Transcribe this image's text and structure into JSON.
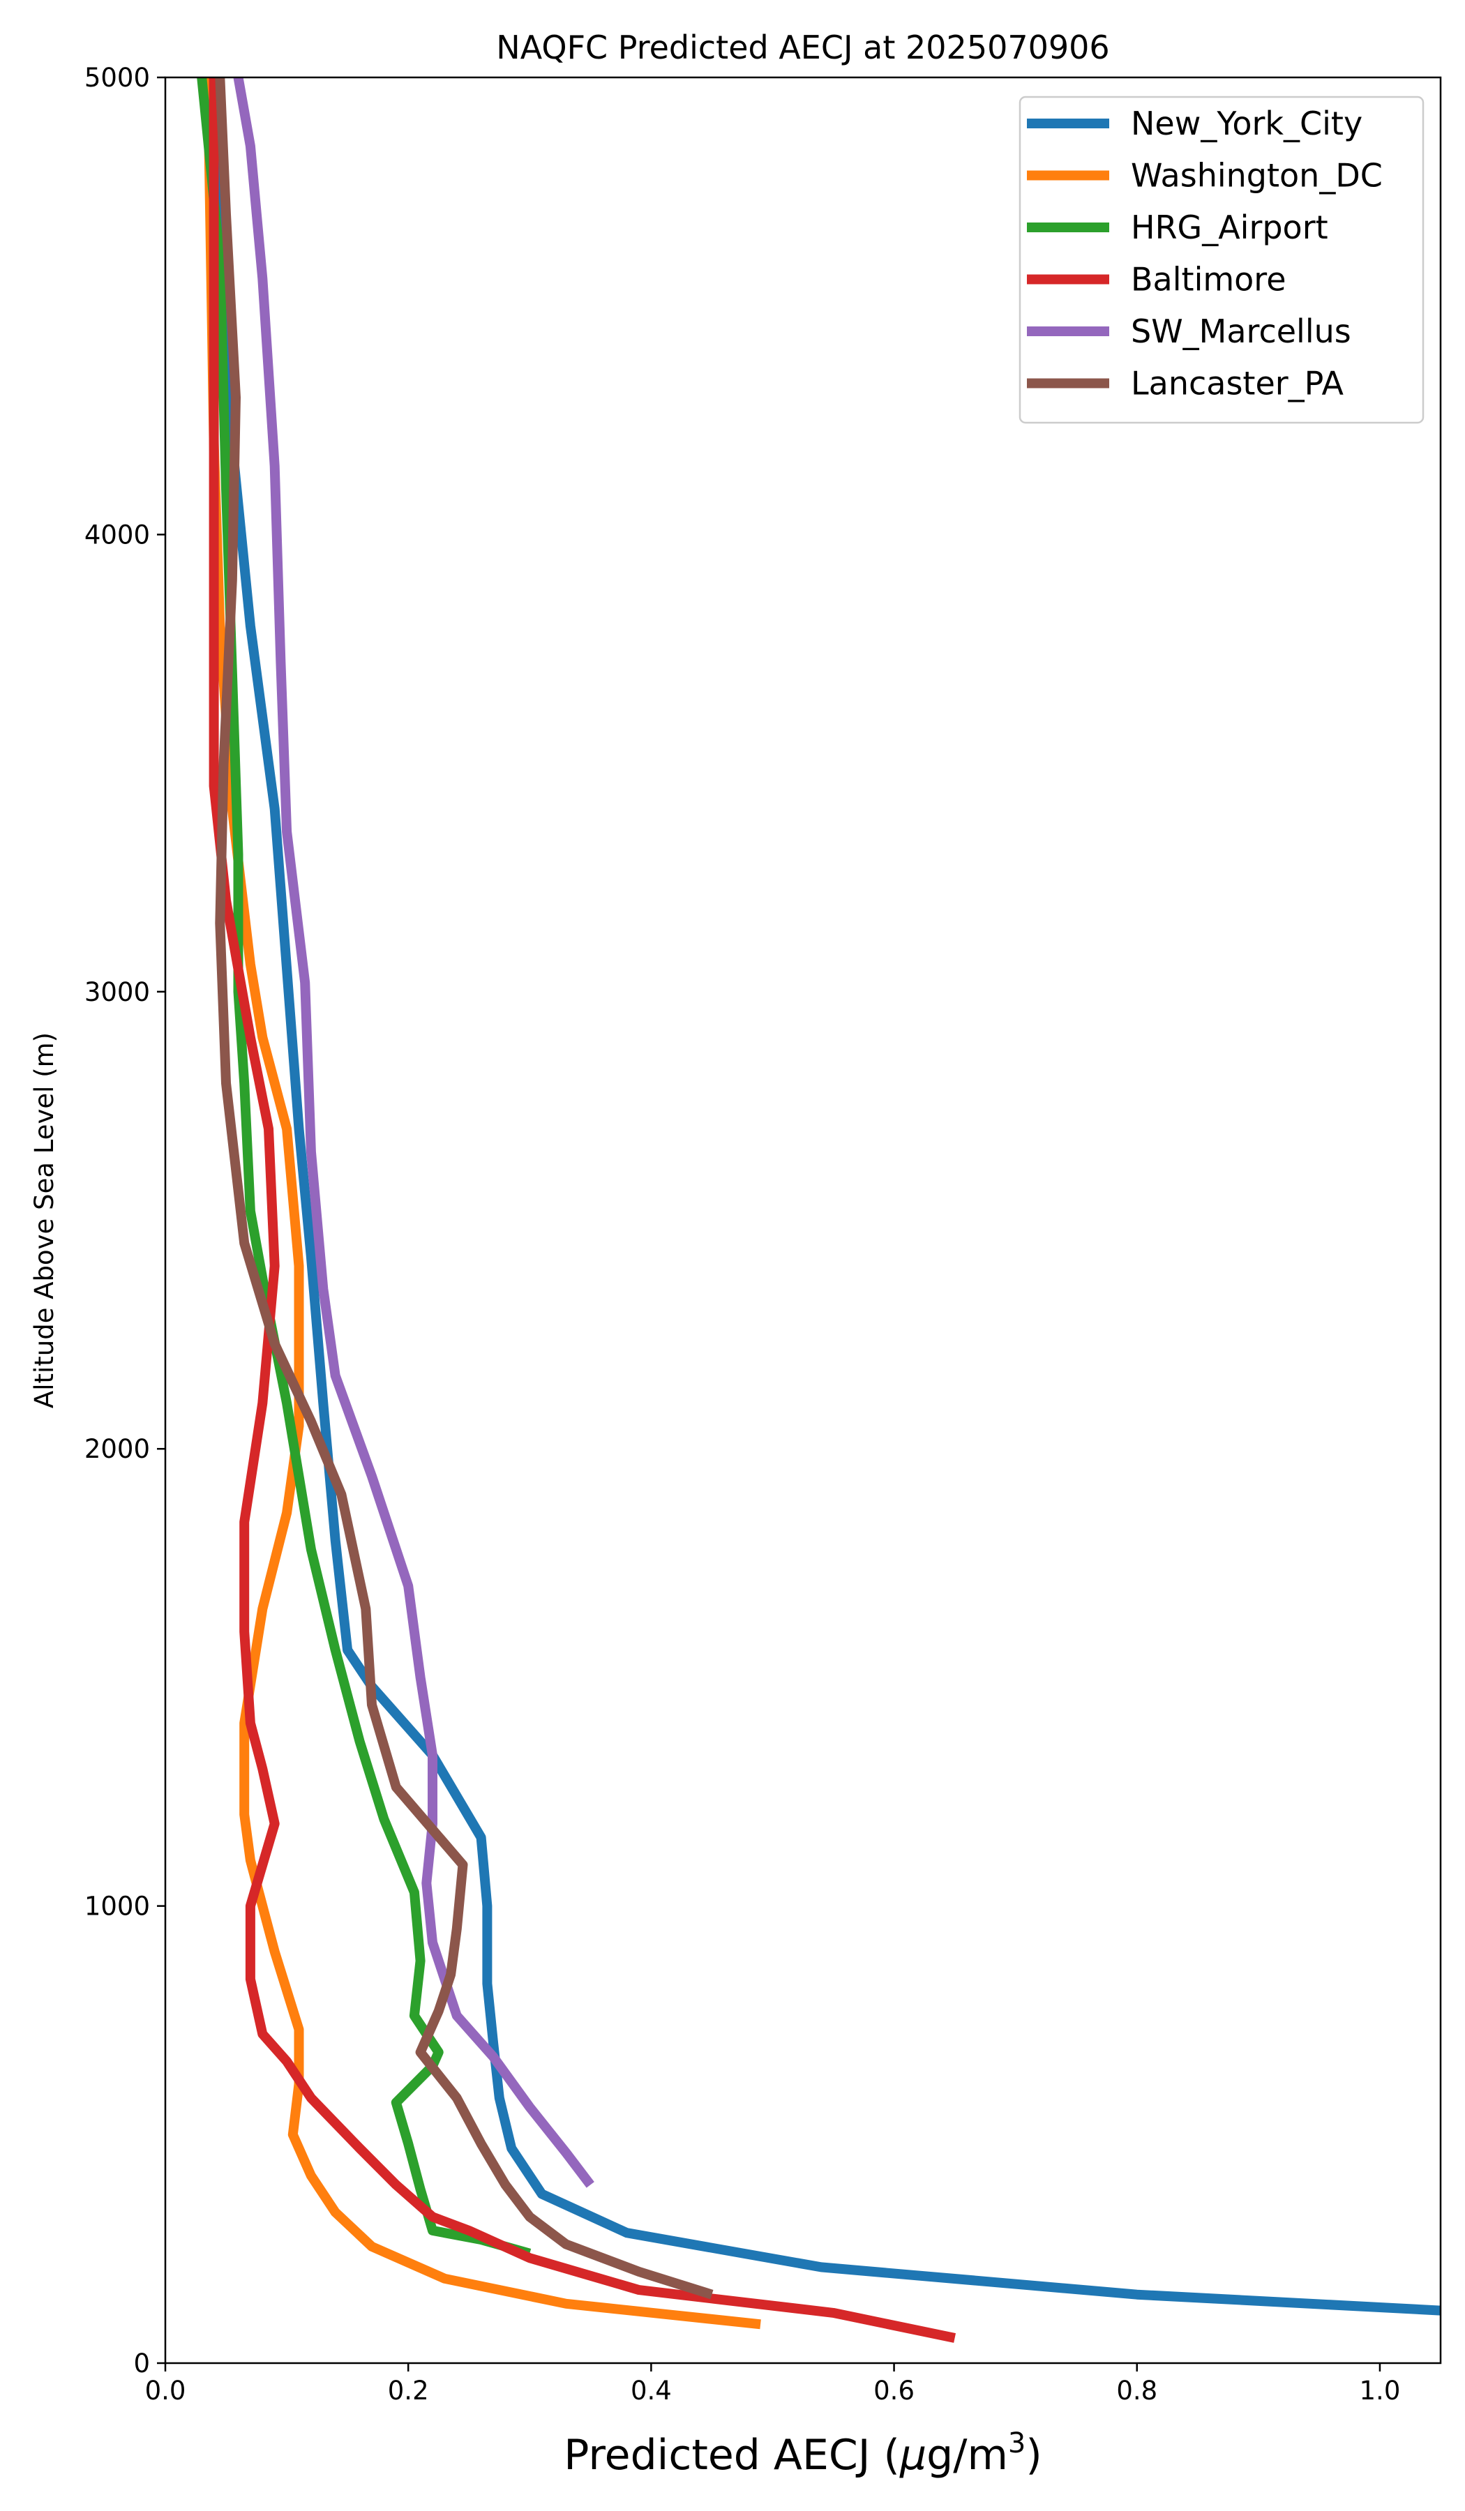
{
  "chart_data": {
    "type": "line",
    "title": "NAQFC Predicted AECJ at 2025070906",
    "xlabel_main": "Predicted AECJ (",
    "xlabel_mu": "μ",
    "xlabel_unit": "g/m",
    "xlabel_sup": "3",
    "xlabel_close": ")",
    "ylabel": "Altitude Above Sea Level (m)",
    "xlim": [
      0.0,
      1.05
    ],
    "ylim": [
      0,
      5000
    ],
    "xticks": [
      0.0,
      0.2,
      0.4,
      0.6,
      0.8,
      1.0
    ],
    "xtick_labels": [
      "0.0",
      "0.2",
      "0.4",
      "0.6",
      "0.8",
      "1.0"
    ],
    "yticks": [
      0,
      1000,
      2000,
      3000,
      4000,
      5000
    ],
    "ytick_labels": [
      "0",
      "1000",
      "2000",
      "3000",
      "4000",
      "5000"
    ],
    "grid": false,
    "legend_position": "top-right",
    "series": [
      {
        "name": "New_York_City",
        "color": "#1f77b4",
        "points": [
          [
            1.05,
            115
          ],
          [
            0.8,
            150
          ],
          [
            0.54,
            210
          ],
          [
            0.38,
            285
          ],
          [
            0.31,
            370
          ],
          [
            0.285,
            470
          ],
          [
            0.275,
            580
          ],
          [
            0.27,
            700
          ],
          [
            0.265,
            830
          ],
          [
            0.265,
            1000
          ],
          [
            0.26,
            1150
          ],
          [
            0.22,
            1330
          ],
          [
            0.17,
            1480
          ],
          [
            0.15,
            1560
          ],
          [
            0.14,
            1800
          ],
          [
            0.13,
            2100
          ],
          [
            0.12,
            2420
          ],
          [
            0.11,
            2700
          ],
          [
            0.1,
            3050
          ],
          [
            0.09,
            3400
          ],
          [
            0.07,
            3800
          ],
          [
            0.055,
            4200
          ],
          [
            0.045,
            4650
          ],
          [
            0.04,
            5000
          ]
        ]
      },
      {
        "name": "Washington_DC",
        "color": "#ff7f0e",
        "points": [
          [
            0.49,
            85
          ],
          [
            0.33,
            130
          ],
          [
            0.23,
            185
          ],
          [
            0.17,
            255
          ],
          [
            0.14,
            330
          ],
          [
            0.12,
            410
          ],
          [
            0.105,
            500
          ],
          [
            0.11,
            610
          ],
          [
            0.11,
            730
          ],
          [
            0.09,
            900
          ],
          [
            0.07,
            1100
          ],
          [
            0.065,
            1200
          ],
          [
            0.065,
            1400
          ],
          [
            0.08,
            1650
          ],
          [
            0.1,
            1860
          ],
          [
            0.11,
            2050
          ],
          [
            0.11,
            2400
          ],
          [
            0.1,
            2700
          ],
          [
            0.08,
            2900
          ],
          [
            0.07,
            3060
          ],
          [
            0.055,
            3400
          ],
          [
            0.045,
            3800
          ],
          [
            0.04,
            4200
          ],
          [
            0.035,
            5000
          ]
        ]
      },
      {
        "name": "HRG_Airport",
        "color": "#2ca02c",
        "points": [
          [
            0.3,
            240
          ],
          [
            0.26,
            270
          ],
          [
            0.22,
            290
          ],
          [
            0.21,
            380
          ],
          [
            0.2,
            480
          ],
          [
            0.19,
            570
          ],
          [
            0.22,
            650
          ],
          [
            0.225,
            680
          ],
          [
            0.205,
            760
          ],
          [
            0.21,
            880
          ],
          [
            0.205,
            1030
          ],
          [
            0.18,
            1190
          ],
          [
            0.16,
            1360
          ],
          [
            0.14,
            1560
          ],
          [
            0.12,
            1780
          ],
          [
            0.1,
            2100
          ],
          [
            0.085,
            2300
          ],
          [
            0.07,
            2520
          ],
          [
            0.065,
            2800
          ],
          [
            0.06,
            3000
          ],
          [
            0.06,
            3300
          ],
          [
            0.055,
            3700
          ],
          [
            0.05,
            4100
          ],
          [
            0.045,
            4600
          ],
          [
            0.03,
            5000
          ]
        ]
      },
      {
        "name": "Baltimore",
        "color": "#d62728",
        "points": [
          [
            0.65,
            55
          ],
          [
            0.55,
            110
          ],
          [
            0.39,
            160
          ],
          [
            0.3,
            230
          ],
          [
            0.25,
            290
          ],
          [
            0.22,
            320
          ],
          [
            0.19,
            390
          ],
          [
            0.16,
            470
          ],
          [
            0.12,
            580
          ],
          [
            0.1,
            660
          ],
          [
            0.08,
            720
          ],
          [
            0.07,
            840
          ],
          [
            0.07,
            1000
          ],
          [
            0.09,
            1180
          ],
          [
            0.08,
            1300
          ],
          [
            0.07,
            1400
          ],
          [
            0.065,
            1600
          ],
          [
            0.065,
            1840
          ],
          [
            0.08,
            2100
          ],
          [
            0.09,
            2400
          ],
          [
            0.085,
            2700
          ],
          [
            0.07,
            2900
          ],
          [
            0.05,
            3200
          ],
          [
            0.04,
            3450
          ],
          [
            0.04,
            3850
          ],
          [
            0.04,
            4250
          ],
          [
            0.04,
            4700
          ],
          [
            0.04,
            5000
          ]
        ]
      },
      {
        "name": "SW_Marcellus",
        "color": "#9467bd",
        "points": [
          [
            0.35,
            390
          ],
          [
            0.33,
            460
          ],
          [
            0.3,
            560
          ],
          [
            0.27,
            670
          ],
          [
            0.24,
            760
          ],
          [
            0.22,
            920
          ],
          [
            0.215,
            1050
          ],
          [
            0.22,
            1180
          ],
          [
            0.22,
            1330
          ],
          [
            0.21,
            1500
          ],
          [
            0.2,
            1700
          ],
          [
            0.17,
            1940
          ],
          [
            0.14,
            2160
          ],
          [
            0.13,
            2350
          ],
          [
            0.12,
            2650
          ],
          [
            0.115,
            3020
          ],
          [
            0.1,
            3350
          ],
          [
            0.095,
            3720
          ],
          [
            0.09,
            4150
          ],
          [
            0.08,
            4560
          ],
          [
            0.07,
            4850
          ],
          [
            0.06,
            5000
          ]
        ]
      },
      {
        "name": "Lancaster_PA",
        "color": "#8c564b",
        "points": [
          [
            0.45,
            150
          ],
          [
            0.39,
            200
          ],
          [
            0.33,
            260
          ],
          [
            0.3,
            320
          ],
          [
            0.28,
            390
          ],
          [
            0.26,
            480
          ],
          [
            0.24,
            580
          ],
          [
            0.21,
            680
          ],
          [
            0.225,
            770
          ],
          [
            0.235,
            850
          ],
          [
            0.24,
            950
          ],
          [
            0.245,
            1090
          ],
          [
            0.19,
            1260
          ],
          [
            0.17,
            1440
          ],
          [
            0.165,
            1650
          ],
          [
            0.145,
            1900
          ],
          [
            0.12,
            2060
          ],
          [
            0.09,
            2230
          ],
          [
            0.065,
            2450
          ],
          [
            0.05,
            2800
          ],
          [
            0.045,
            3150
          ],
          [
            0.048,
            3500
          ],
          [
            0.055,
            3900
          ],
          [
            0.058,
            4300
          ],
          [
            0.05,
            4700
          ],
          [
            0.045,
            5000
          ]
        ]
      }
    ]
  }
}
